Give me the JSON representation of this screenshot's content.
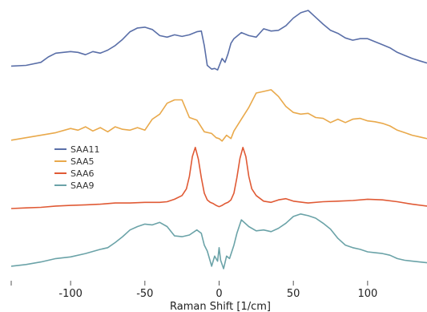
{
  "chart_data": {
    "type": "line",
    "title": "",
    "xlabel": "Raman Shift [1/cm]",
    "ylabel": "",
    "xlim": [
      -140,
      140
    ],
    "xticks": [
      -100,
      -50,
      0,
      50,
      100
    ],
    "legend_position": "left",
    "grid": false,
    "series": [
      {
        "name": "SAA11",
        "color": "#5a6fa8",
        "x": [
          -140,
          -130,
          -120,
          -115,
          -110,
          -100,
          -95,
          -90,
          -85,
          -80,
          -75,
          -70,
          -65,
          -60,
          -55,
          -50,
          -45,
          -40,
          -35,
          -30,
          -25,
          -20,
          -15,
          -12,
          -10,
          -8,
          -5,
          -3,
          -1,
          0,
          2,
          4,
          6,
          8,
          10,
          15,
          20,
          25,
          30,
          35,
          40,
          45,
          50,
          55,
          60,
          65,
          70,
          75,
          80,
          85,
          90,
          95,
          100,
          105,
          110,
          115,
          120,
          125,
          130,
          135,
          140
        ],
        "y": [
          0.8,
          0.9,
          1.3,
          2.0,
          2.5,
          2.7,
          2.6,
          2.3,
          2.7,
          2.5,
          2.9,
          3.5,
          4.3,
          5.3,
          5.8,
          5.9,
          5.6,
          4.8,
          4.6,
          4.9,
          4.7,
          4.9,
          5.3,
          5.4,
          3.5,
          0.9,
          0.4,
          0.5,
          0.3,
          0.8,
          1.8,
          1.3,
          2.4,
          3.8,
          4.4,
          5.2,
          4.8,
          4.6,
          5.7,
          5.4,
          5.5,
          6.1,
          7.1,
          7.8,
          8.1,
          7.2,
          6.3,
          5.5,
          5.1,
          4.5,
          4.2,
          4.4,
          4.4,
          4.0,
          3.6,
          3.2,
          2.6,
          2.2,
          1.8,
          1.5,
          1.2
        ]
      },
      {
        "name": "SAA5",
        "color": "#e9a94b",
        "x": [
          -140,
          -130,
          -120,
          -110,
          -100,
          -95,
          -90,
          -85,
          -80,
          -75,
          -70,
          -65,
          -60,
          -55,
          -50,
          -45,
          -40,
          -35,
          -30,
          -25,
          -20,
          -15,
          -10,
          -5,
          -2,
          0,
          2,
          5,
          8,
          10,
          15,
          20,
          25,
          30,
          35,
          40,
          45,
          50,
          55,
          60,
          65,
          70,
          75,
          80,
          85,
          90,
          95,
          100,
          105,
          110,
          115,
          120,
          125,
          130,
          135,
          140
        ],
        "y": [
          0.3,
          0.6,
          0.9,
          1.2,
          1.7,
          1.5,
          1.9,
          1.4,
          1.8,
          1.3,
          1.9,
          1.6,
          1.5,
          1.8,
          1.5,
          2.8,
          3.4,
          4.7,
          5.1,
          5.1,
          3.0,
          2.7,
          1.3,
          1.1,
          0.6,
          0.5,
          0.2,
          0.9,
          0.5,
          1.4,
          2.8,
          4.2,
          5.9,
          6.1,
          6.3,
          5.5,
          4.3,
          3.6,
          3.4,
          3.5,
          3.0,
          2.9,
          2.4,
          2.8,
          2.4,
          2.8,
          2.9,
          2.6,
          2.5,
          2.3,
          2.0,
          1.5,
          1.2,
          0.9,
          0.7,
          0.5
        ]
      },
      {
        "name": "SAA6",
        "color": "#e05a35",
        "x": [
          -140,
          -130,
          -120,
          -110,
          -100,
          -90,
          -80,
          -70,
          -60,
          -50,
          -40,
          -35,
          -30,
          -25,
          -22,
          -20,
          -18,
          -16,
          -14,
          -12,
          -10,
          -8,
          -6,
          -4,
          -2,
          0,
          2,
          4,
          6,
          8,
          10,
          12,
          14,
          16,
          18,
          20,
          22,
          25,
          30,
          35,
          40,
          45,
          50,
          60,
          70,
          80,
          90,
          100,
          110,
          120,
          130,
          140
        ],
        "y": [
          0.0,
          0.1,
          0.2,
          0.4,
          0.5,
          0.6,
          0.7,
          0.9,
          0.9,
          1.0,
          1.0,
          1.1,
          1.5,
          2.1,
          3.2,
          5.2,
          8.4,
          9.9,
          8.0,
          5.0,
          2.5,
          1.4,
          1.0,
          0.8,
          0.5,
          0.3,
          0.5,
          0.8,
          1.0,
          1.4,
          2.5,
          5.0,
          8.1,
          9.9,
          8.4,
          5.2,
          3.2,
          2.1,
          1.2,
          1.0,
          1.4,
          1.6,
          1.2,
          0.9,
          1.1,
          1.2,
          1.3,
          1.5,
          1.4,
          1.1,
          0.7,
          0.4
        ]
      },
      {
        "name": "SAA9",
        "color": "#6ba3a8",
        "x": [
          -140,
          -130,
          -120,
          -110,
          -100,
          -90,
          -80,
          -75,
          -70,
          -65,
          -60,
          -55,
          -50,
          -45,
          -40,
          -35,
          -30,
          -25,
          -20,
          -15,
          -12,
          -10,
          -8,
          -5,
          -3,
          -1,
          0,
          1,
          3,
          5,
          7,
          10,
          12,
          15,
          20,
          25,
          30,
          35,
          40,
          45,
          50,
          55,
          60,
          65,
          70,
          75,
          80,
          85,
          90,
          95,
          100,
          105,
          110,
          115,
          120,
          125,
          130,
          135,
          140
        ],
        "y": [
          0.3,
          0.5,
          0.8,
          1.2,
          1.4,
          1.8,
          2.3,
          2.5,
          3.1,
          3.8,
          4.6,
          5.0,
          5.3,
          5.2,
          5.5,
          5.0,
          3.9,
          3.8,
          4.0,
          4.6,
          4.2,
          2.8,
          2.1,
          0.3,
          1.5,
          0.9,
          2.5,
          1.0,
          0.0,
          1.5,
          1.2,
          2.8,
          4.2,
          5.8,
          5.0,
          4.5,
          4.6,
          4.4,
          4.8,
          5.4,
          6.2,
          6.5,
          6.3,
          6.0,
          5.4,
          4.7,
          3.6,
          2.8,
          2.5,
          2.3,
          2.0,
          1.9,
          1.8,
          1.6,
          1.2,
          1.0,
          0.9,
          0.8,
          0.7
        ]
      }
    ]
  }
}
